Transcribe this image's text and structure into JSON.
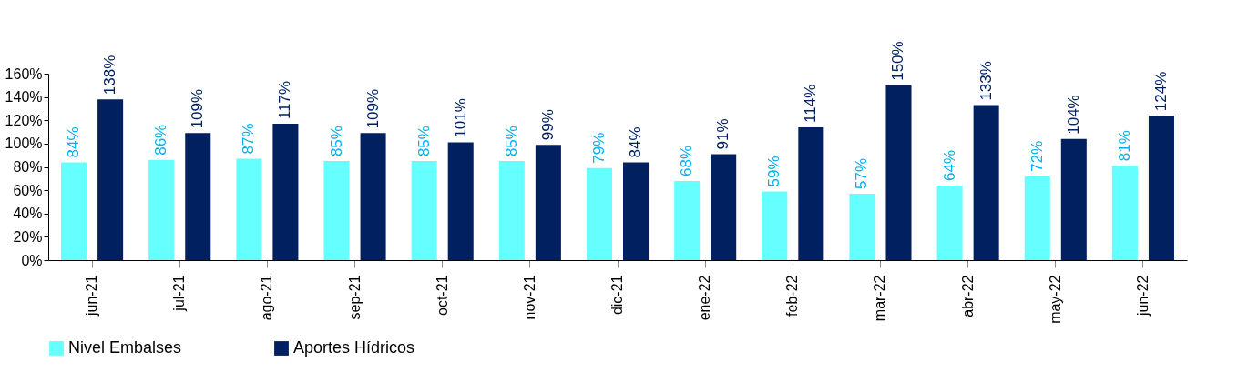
{
  "chart_data": {
    "type": "bar",
    "categories": [
      "jun-21",
      "jul-21",
      "ago-21",
      "sep-21",
      "oct-21",
      "nov-21",
      "dic-21",
      "ene-22",
      "feb-22",
      "mar-22",
      "abr-22",
      "may-22",
      "jun-22"
    ],
    "series": [
      {
        "name": "Nivel Embalses",
        "color": "#66ffff",
        "values": [
          84,
          86,
          87,
          85,
          85,
          85,
          79,
          68,
          59,
          57,
          64,
          72,
          81
        ],
        "value_labels": [
          "84%",
          "86%",
          "87%",
          "85%",
          "85%",
          "85%",
          "79%",
          "68%",
          "59%",
          "57%",
          "64%",
          "72%",
          "81%"
        ]
      },
      {
        "name": "Aportes Hídricos",
        "color": "#002060",
        "values": [
          138,
          109,
          117,
          109,
          101,
          99,
          84,
          91,
          114,
          150,
          133,
          104,
          124
        ],
        "value_labels": [
          "138%",
          "109%",
          "117%",
          "109%",
          "101%",
          "99%",
          "84%",
          "91%",
          "114%",
          "150%",
          "133%",
          "104%",
          "124%"
        ]
      }
    ],
    "ylim": [
      0,
      160
    ],
    "yticks": [
      {
        "value": 0,
        "label": "0%"
      },
      {
        "value": 20,
        "label": "20%"
      },
      {
        "value": 40,
        "label": "40%"
      },
      {
        "value": 60,
        "label": "60%"
      },
      {
        "value": 80,
        "label": "80%"
      },
      {
        "value": 100,
        "label": "100%"
      },
      {
        "value": 120,
        "label": "120%"
      },
      {
        "value": 140,
        "label": "140%"
      },
      {
        "value": 160,
        "label": "160%"
      }
    ],
    "grid": false,
    "legend": "bottom"
  }
}
